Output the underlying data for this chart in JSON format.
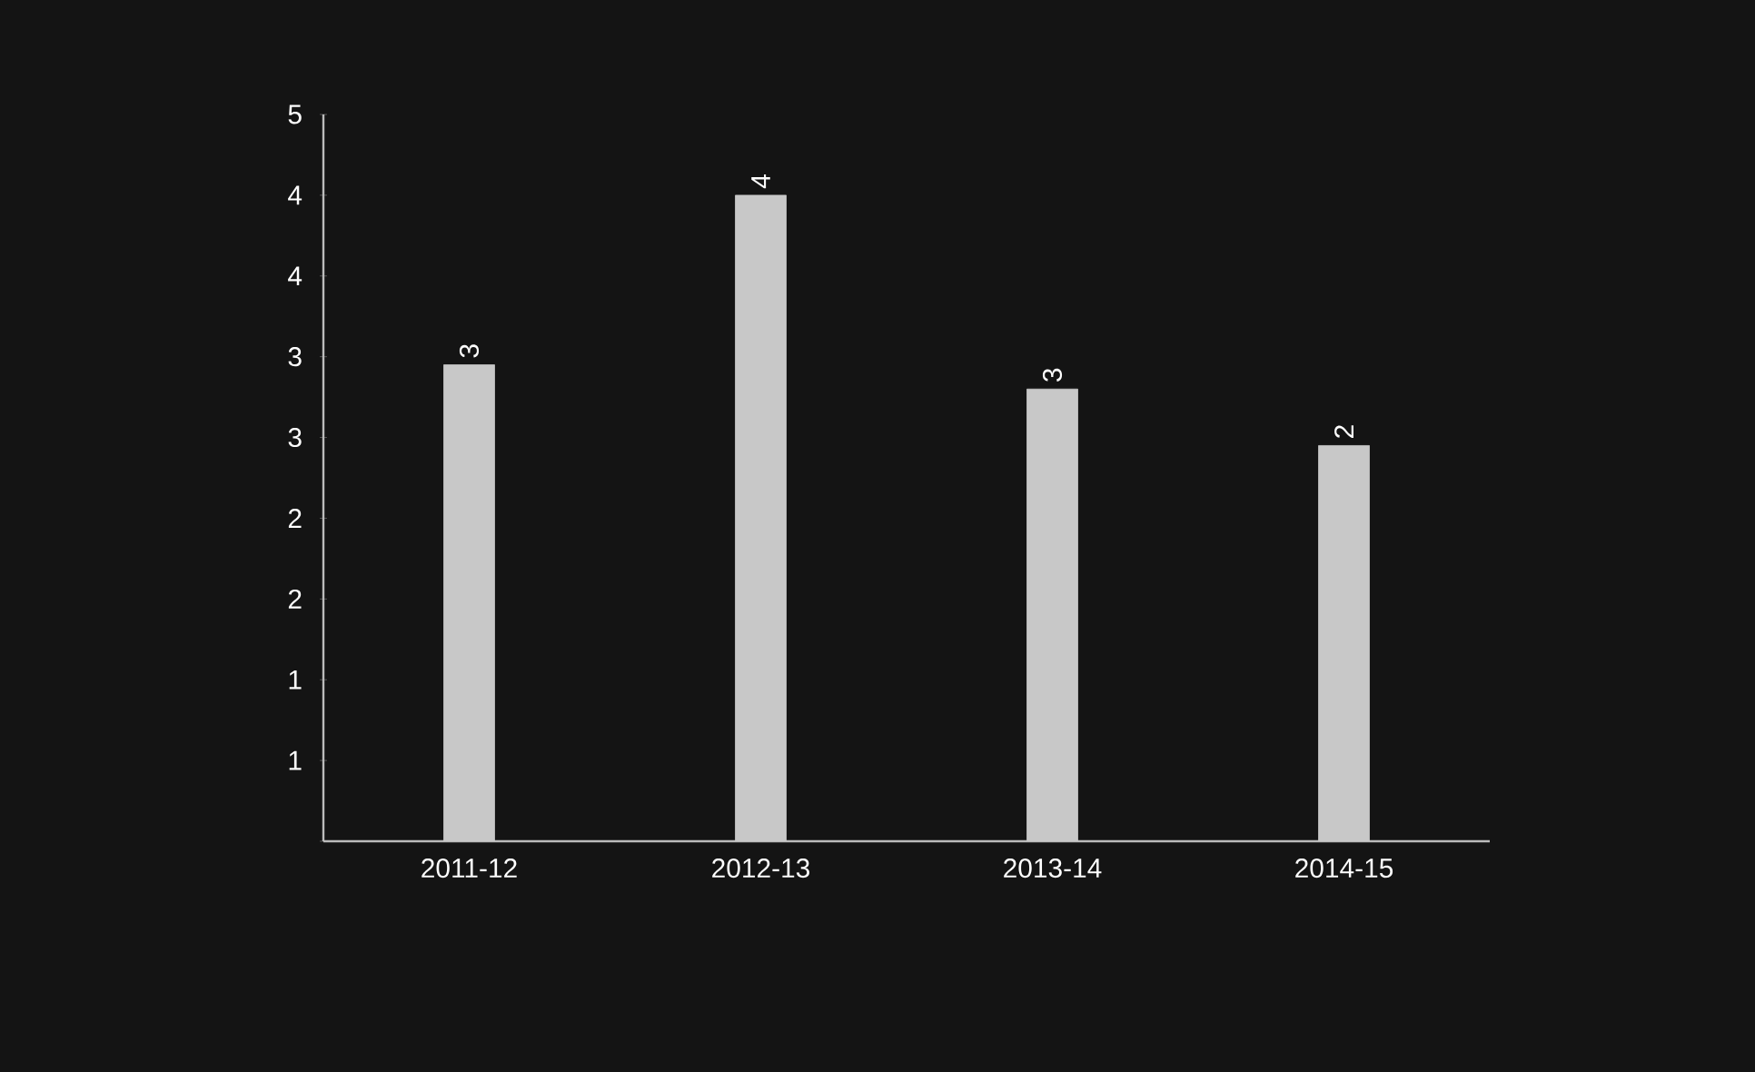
{
  "chart_data": {
    "type": "bar",
    "categories": [
      "2011-12",
      "2012-13",
      "2013-14",
      "2014-15"
    ],
    "values": [
      2.95,
      4.0,
      2.8,
      2.45
    ],
    "value_labels": [
      "3",
      "4",
      "3",
      "2"
    ],
    "color": "#c8c8c8",
    "ylim": [
      0,
      4.5
    ],
    "yticks": [
      {
        "value": 0,
        "label": null
      },
      {
        "value": 0.5,
        "label": "1"
      },
      {
        "value": 1,
        "label": "1"
      },
      {
        "value": 1.5,
        "label": "2"
      },
      {
        "value": 2,
        "label": "2"
      },
      {
        "value": 2.5,
        "label": "3"
      },
      {
        "value": 3,
        "label": "3"
      },
      {
        "value": 3.5,
        "label": "4"
      },
      {
        "value": 4,
        "label": "4"
      },
      {
        "value": 4.5,
        "label": "5"
      }
    ],
    "grid": false
  }
}
